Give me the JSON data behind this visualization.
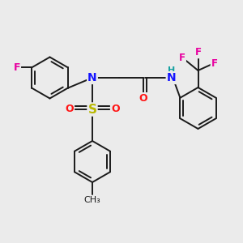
{
  "bg_color": "#ebebeb",
  "bond_color": "#1a1a1a",
  "bond_width": 1.4,
  "dbo": 0.13,
  "atom_colors": {
    "F": "#e800a0",
    "N": "#1414ff",
    "S": "#b8b800",
    "O": "#ff1414",
    "H": "#14a0a0",
    "C": "#1a1a1a"
  }
}
